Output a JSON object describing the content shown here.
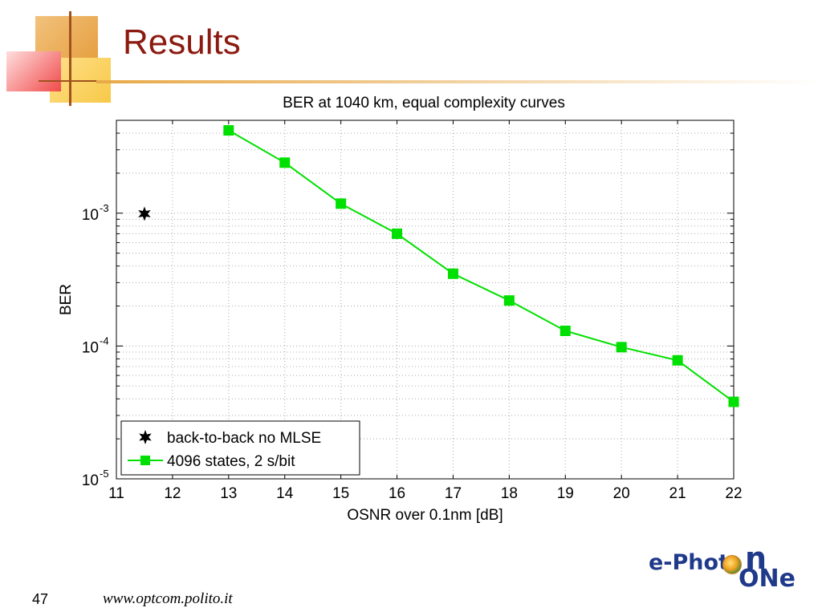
{
  "slide": {
    "title": "Results",
    "number": "47",
    "footer_url": "www.optcom.polito.it",
    "logo": {
      "part1": "e-Phot",
      "part1_end": "n",
      "part2": "ONe"
    }
  },
  "chart_data": {
    "type": "line",
    "title": "BER at 1040 km, equal complexity curves",
    "xlabel": "OSNR over 0.1nm [dB]",
    "ylabel": "BER",
    "xlim": [
      11,
      22
    ],
    "ylim": [
      1e-05,
      0.005
    ],
    "yscale": "log",
    "grid": true,
    "legend": "bottom-left",
    "x_ticks": [
      11,
      12,
      13,
      14,
      15,
      16,
      17,
      18,
      19,
      20,
      21,
      22
    ],
    "y_ticks": [
      {
        "value": 1e-05,
        "base": "10",
        "exp": "-5"
      },
      {
        "value": 0.0001,
        "base": "10",
        "exp": "-4"
      },
      {
        "value": 0.001,
        "base": "10",
        "exp": "-3"
      }
    ],
    "series": [
      {
        "name": "back-to-back no MLSE",
        "marker": "star",
        "line": false,
        "color": "#000000",
        "points": [
          {
            "x": 11.5,
            "y": 0.00099
          }
        ]
      },
      {
        "name": "4096 states, 2 s/bit",
        "marker": "square",
        "line": true,
        "color": "#00e000",
        "points": [
          {
            "x": 13,
            "y": 0.0042
          },
          {
            "x": 14,
            "y": 0.0024
          },
          {
            "x": 15,
            "y": 0.00118
          },
          {
            "x": 16,
            "y": 0.0007
          },
          {
            "x": 17,
            "y": 0.00035
          },
          {
            "x": 18,
            "y": 0.00022
          },
          {
            "x": 19,
            "y": 0.00013
          },
          {
            "x": 20,
            "y": 9.8e-05
          },
          {
            "x": 21,
            "y": 7.8e-05
          },
          {
            "x": 22,
            "y": 3.8e-05
          }
        ]
      }
    ]
  }
}
